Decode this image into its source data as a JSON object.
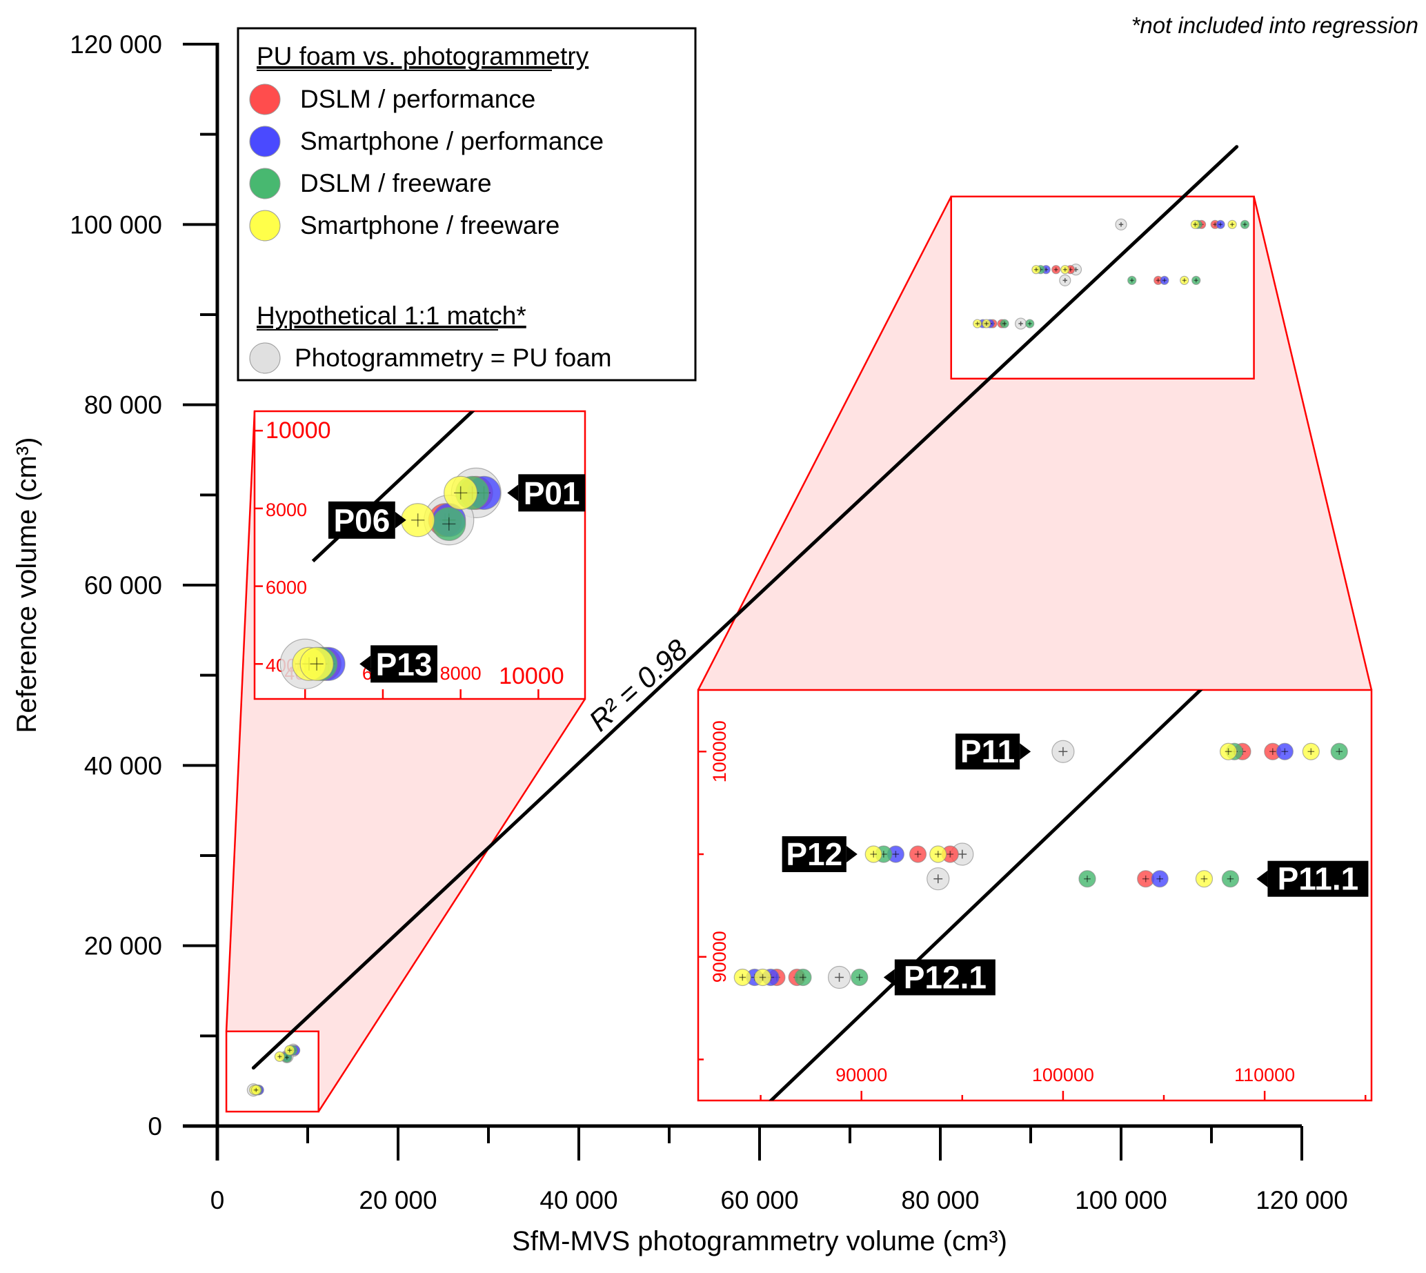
{
  "chart_data": {
    "type": "scatter",
    "title": "",
    "xlabel": "SfM-MVS photogrammetry volume (cm³)",
    "ylabel": "Reference volume (cm³)",
    "xlim": [
      0,
      120000
    ],
    "ylim": [
      0,
      120000
    ],
    "x_ticks": [
      0,
      20000,
      40000,
      60000,
      80000,
      100000,
      120000
    ],
    "x_tick_labels": [
      "0",
      "20 000",
      "40 000",
      "60 000",
      "80 000",
      "100 000",
      "120 000"
    ],
    "y_ticks": [
      0,
      20000,
      40000,
      60000,
      80000,
      100000,
      120000
    ],
    "y_tick_labels": [
      "0",
      "20 000",
      "40 000",
      "60 000",
      "80 000",
      "100 000",
      "120 000"
    ],
    "minor_tick_step": 10000,
    "grid": false,
    "note": "*not included into regression",
    "regression": {
      "label": "R² = 0.98",
      "r_squared": 0.98,
      "x_range": [
        4000,
        112800
      ],
      "slope": 0.939,
      "intercept": 2700
    },
    "legend": {
      "placement": "top-left",
      "heading": "PU foam vs. photogrammetry",
      "entries": [
        {
          "label": "DSLM / performance",
          "color": "#ff4d4d"
        },
        {
          "label": "Smartphone / performance",
          "color": "#4a4aff"
        },
        {
          "label": "DSLM / freeware",
          "color": "#48b870"
        },
        {
          "label": "Smartphone / freeware",
          "color": "#ffff4a"
        }
      ],
      "heading2": "Hypothetical 1:1 match*",
      "entries2": [
        {
          "label": "Photogrammetry = PU foam",
          "color": "#e0e0e0"
        }
      ]
    },
    "series": [
      {
        "name": "DSLM / performance",
        "color": "#ff4d4d",
        "points": [
          {
            "sample": "P01",
            "x": 8400,
            "y": 8400
          },
          {
            "sample": "P06",
            "x": 7600,
            "y": 7700
          },
          {
            "sample": "P13",
            "x": 4500,
            "y": 4000
          },
          {
            "sample": "P11",
            "x": 108900,
            "y": 100000
          },
          {
            "sample": "P11",
            "x": 110400,
            "y": 100000
          },
          {
            "sample": "P12",
            "x": 92800,
            "y": 95000
          },
          {
            "sample": "P12",
            "x": 94400,
            "y": 95000
          },
          {
            "sample": "P11.1",
            "x": 104100,
            "y": 93800
          },
          {
            "sample": "P12.1",
            "x": 85800,
            "y": 89000
          },
          {
            "sample": "P12.1",
            "x": 86800,
            "y": 89000
          }
        ]
      },
      {
        "name": "Smartphone / performance",
        "color": "#4a4aff",
        "points": [
          {
            "sample": "P01",
            "x": 8600,
            "y": 8400
          },
          {
            "sample": "P06",
            "x": 7700,
            "y": 7700
          },
          {
            "sample": "P13",
            "x": 4600,
            "y": 4000
          },
          {
            "sample": "P11",
            "x": 111000,
            "y": 100000
          },
          {
            "sample": "P12",
            "x": 91700,
            "y": 95000
          },
          {
            "sample": "P11.1",
            "x": 104800,
            "y": 93800
          },
          {
            "sample": "P12.1",
            "x": 84700,
            "y": 89000
          },
          {
            "sample": "P12.1",
            "x": 85500,
            "y": 89000
          }
        ]
      },
      {
        "name": "DSLM / freeware",
        "color": "#48b870",
        "points": [
          {
            "sample": "P01",
            "x": 8300,
            "y": 8400
          },
          {
            "sample": "P06",
            "x": 7700,
            "y": 7600
          },
          {
            "sample": "P13",
            "x": 4400,
            "y": 4000
          },
          {
            "sample": "P11",
            "x": 108500,
            "y": 100000
          },
          {
            "sample": "P11",
            "x": 113700,
            "y": 100000
          },
          {
            "sample": "P12",
            "x": 91100,
            "y": 95000
          },
          {
            "sample": "P11.1",
            "x": 101200,
            "y": 93800
          },
          {
            "sample": "P11.1",
            "x": 108300,
            "y": 93800
          },
          {
            "sample": "P12.1",
            "x": 87100,
            "y": 89000
          },
          {
            "sample": "P12.1",
            "x": 89900,
            "y": 89000
          }
        ]
      },
      {
        "name": "Smartphone / freeware",
        "color": "#ffff4a",
        "points": [
          {
            "sample": "P01",
            "x": 8000,
            "y": 8400
          },
          {
            "sample": "P06",
            "x": 6900,
            "y": 7700
          },
          {
            "sample": "P13",
            "x": 4100,
            "y": 4000
          },
          {
            "sample": "P13",
            "x": 4300,
            "y": 4000
          },
          {
            "sample": "P11",
            "x": 108200,
            "y": 100000
          },
          {
            "sample": "P11",
            "x": 112300,
            "y": 100000
          },
          {
            "sample": "P12",
            "x": 90600,
            "y": 95000
          },
          {
            "sample": "P12",
            "x": 93800,
            "y": 95000
          },
          {
            "sample": "P11.1",
            "x": 107000,
            "y": 93800
          },
          {
            "sample": "P12.1",
            "x": 84100,
            "y": 89000
          },
          {
            "sample": "P12.1",
            "x": 85100,
            "y": 89000
          }
        ]
      },
      {
        "name": "Photogrammetry = PU foam",
        "color": "#e0e0e0",
        "points": [
          {
            "sample": "P01",
            "x": 8400,
            "y": 8400
          },
          {
            "sample": "P06",
            "x": 7700,
            "y": 7700
          },
          {
            "sample": "P13",
            "x": 4000,
            "y": 4000
          },
          {
            "sample": "P11",
            "x": 100000,
            "y": 100000
          },
          {
            "sample": "P12",
            "x": 95000,
            "y": 95000
          },
          {
            "sample": "P11.1",
            "x": 93800,
            "y": 93800
          },
          {
            "sample": "P12.1",
            "x": 88900,
            "y": 89000
          }
        ]
      }
    ],
    "insets": [
      {
        "name": "small-inset",
        "xlim": [
          2700,
          11200
        ],
        "ylim": [
          3100,
          10500
        ],
        "x_ticks": [
          4000,
          6000,
          8000,
          10000
        ],
        "x_tick_labels": [
          "4000",
          "6000",
          "8000",
          "10000"
        ],
        "y_ticks": [
          4000,
          6000,
          8000,
          10000
        ],
        "y_tick_labels": [
          "4000",
          "6000",
          "8000",
          "10000"
        ],
        "source_region": {
          "x": [
            1000,
            11200
          ],
          "y": [
            1600,
            10500
          ]
        },
        "labels": [
          {
            "text": "P01",
            "x": 9200,
            "y": 8400,
            "side": "right"
          },
          {
            "text": "P06",
            "x": 6600,
            "y": 7700,
            "side": "left"
          },
          {
            "text": "P13",
            "x": 5400,
            "y": 4000,
            "side": "right"
          }
        ]
      },
      {
        "name": "large-inset",
        "xlim": [
          81900,
          115300
        ],
        "ylim": [
          83000,
          103000
        ],
        "x_ticks": [
          90000,
          100000,
          110000
        ],
        "x_tick_labels": [
          "90000",
          "100000",
          "110000"
        ],
        "x_minor_ticks": [
          85000,
          95000,
          105000,
          115000
        ],
        "y_ticks": [
          90000,
          100000
        ],
        "y_tick_labels": [
          "90000",
          "100000"
        ],
        "y_minor_ticks": [
          85000,
          95000
        ],
        "source_region": {
          "x": [
            81200,
            114700
          ],
          "y": [
            82900,
            103100
          ]
        },
        "labels": [
          {
            "text": "P11",
            "x": 98400,
            "y": 100000,
            "side": "left"
          },
          {
            "text": "P12",
            "x": 89800,
            "y": 95000,
            "side": "left"
          },
          {
            "text": "P11.1",
            "x": 109600,
            "y": 93800,
            "side": "right"
          },
          {
            "text": "P12.1",
            "x": 91100,
            "y": 89000,
            "side": "right"
          }
        ]
      }
    ]
  }
}
